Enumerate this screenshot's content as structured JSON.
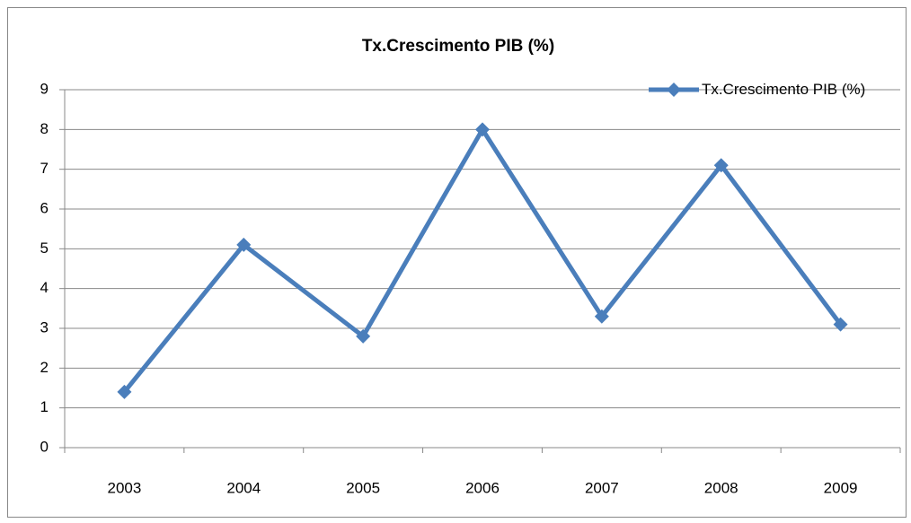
{
  "chart_data": {
    "type": "line",
    "title": "Tx.Crescimento PIB (%)",
    "categories": [
      "2003",
      "2004",
      "2005",
      "2006",
      "2007",
      "2008",
      "2009"
    ],
    "series": [
      {
        "name": "Tx.Crescimento PIB (%)",
        "color": "#4a7ebb",
        "values": [
          1.4,
          5.1,
          2.8,
          8.0,
          3.3,
          7.1,
          3.1
        ]
      }
    ],
    "ylim": [
      0,
      9
    ],
    "yticks": [
      0,
      1,
      2,
      3,
      4,
      5,
      6,
      7,
      8,
      9
    ],
    "grid": true,
    "legend": "upper right"
  }
}
